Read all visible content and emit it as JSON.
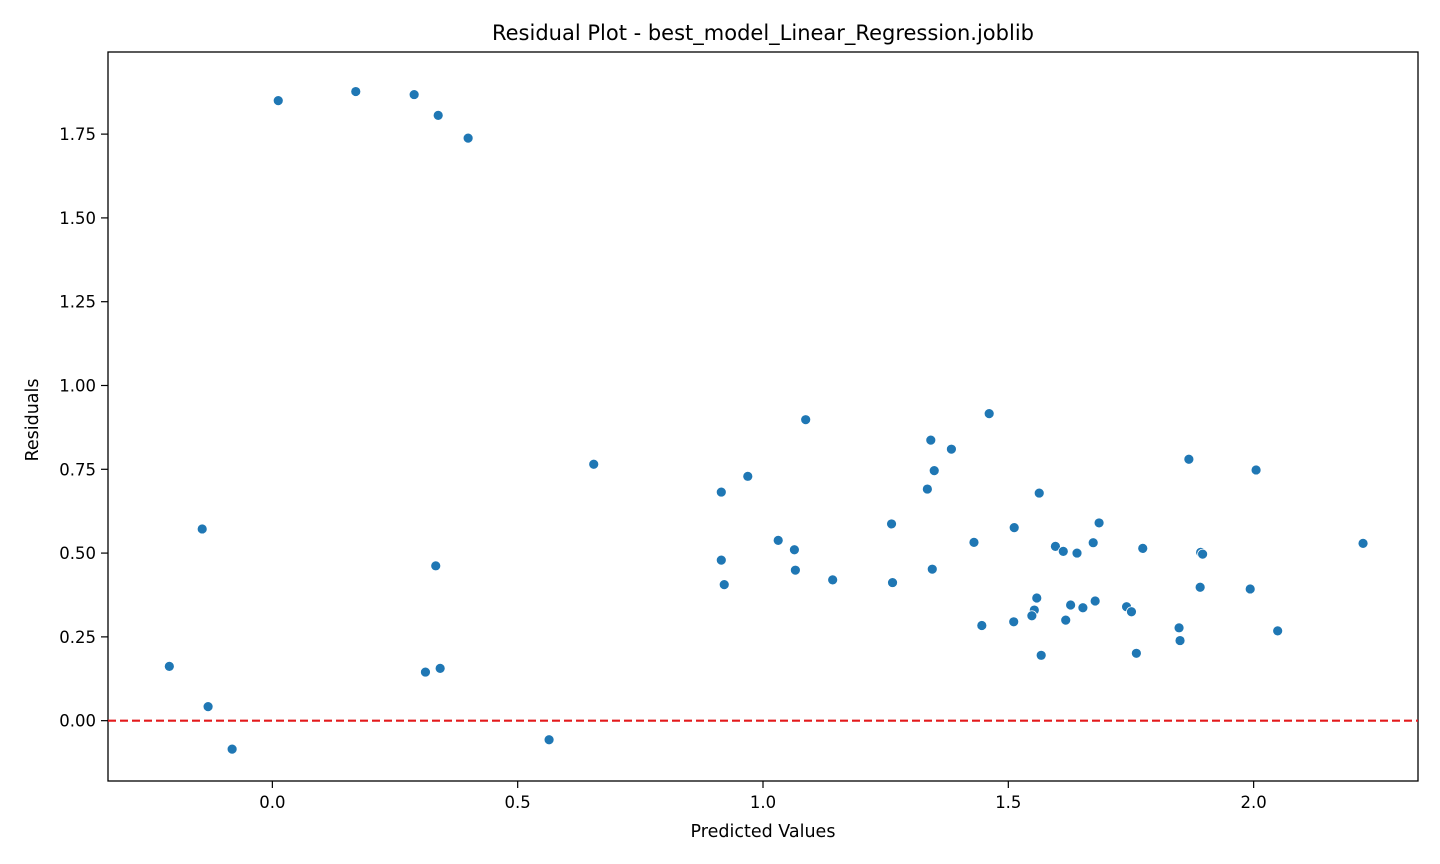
{
  "chart_data": {
    "type": "scatter",
    "title": "Residual Plot - best_model_Linear_Regression.joblib",
    "xlabel": "Predicted Values",
    "ylabel": "Residuals",
    "xlim": [
      -0.335,
      2.335
    ],
    "ylim": [
      -0.18,
      1.995
    ],
    "xticks": [
      0.0,
      0.5,
      1.0,
      1.5,
      2.0
    ],
    "xtick_labels": [
      "0.0",
      "0.5",
      "1.0",
      "1.5",
      "2.0"
    ],
    "yticks": [
      0.0,
      0.25,
      0.5,
      0.75,
      1.0,
      1.25,
      1.5,
      1.75
    ],
    "ytick_labels": [
      "0.00",
      "0.25",
      "0.50",
      "0.75",
      "1.00",
      "1.25",
      "1.50",
      "1.75"
    ],
    "grid": false,
    "point_color": "#1f77b4",
    "reference_line": {
      "y": 0.0,
      "color": "#e31a1c",
      "style": "dashed"
    },
    "series": [
      {
        "name": "residuals",
        "points": [
          [
            0.012,
            1.85
          ],
          [
            0.17,
            1.877
          ],
          [
            0.289,
            1.868
          ],
          [
            0.338,
            1.806
          ],
          [
            0.399,
            1.738
          ],
          [
            -0.143,
            0.572
          ],
          [
            -0.21,
            0.162
          ],
          [
            -0.131,
            0.042
          ],
          [
            -0.082,
            -0.085
          ],
          [
            0.333,
            0.462
          ],
          [
            0.312,
            0.145
          ],
          [
            0.342,
            0.156
          ],
          [
            0.564,
            -0.057
          ],
          [
            0.655,
            0.765
          ],
          [
            0.915,
            0.682
          ],
          [
            0.969,
            0.729
          ],
          [
            0.915,
            0.479
          ],
          [
            0.921,
            0.406
          ],
          [
            1.031,
            0.538
          ],
          [
            1.064,
            0.51
          ],
          [
            1.066,
            0.449
          ],
          [
            1.142,
            0.42
          ],
          [
            1.087,
            0.898
          ],
          [
            1.262,
            0.587
          ],
          [
            1.264,
            0.412
          ],
          [
            1.335,
            0.691
          ],
          [
            1.342,
            0.837
          ],
          [
            1.349,
            0.746
          ],
          [
            1.345,
            0.452
          ],
          [
            1.384,
            0.81
          ],
          [
            1.461,
            0.916
          ],
          [
            1.43,
            0.532
          ],
          [
            1.446,
            0.284
          ],
          [
            1.512,
            0.576
          ],
          [
            1.511,
            0.295
          ],
          [
            1.563,
            0.679
          ],
          [
            1.558,
            0.366
          ],
          [
            1.553,
            0.33
          ],
          [
            1.548,
            0.313
          ],
          [
            1.567,
            0.195
          ],
          [
            1.596,
            0.52
          ],
          [
            1.612,
            0.505
          ],
          [
            1.64,
            0.5
          ],
          [
            1.617,
            0.3
          ],
          [
            1.627,
            0.345
          ],
          [
            1.652,
            0.337
          ],
          [
            1.673,
            0.531
          ],
          [
            1.685,
            0.59
          ],
          [
            1.677,
            0.357
          ],
          [
            1.741,
            0.34
          ],
          [
            1.751,
            0.325
          ],
          [
            1.774,
            0.514
          ],
          [
            1.761,
            0.201
          ],
          [
            1.848,
            0.277
          ],
          [
            1.85,
            0.239
          ],
          [
            1.868,
            0.78
          ],
          [
            1.892,
            0.502
          ],
          [
            1.896,
            0.497
          ],
          [
            1.891,
            0.398
          ],
          [
            1.993,
            0.393
          ],
          [
            2.005,
            0.748
          ],
          [
            2.049,
            0.268
          ],
          [
            2.223,
            0.529
          ]
        ]
      }
    ]
  }
}
